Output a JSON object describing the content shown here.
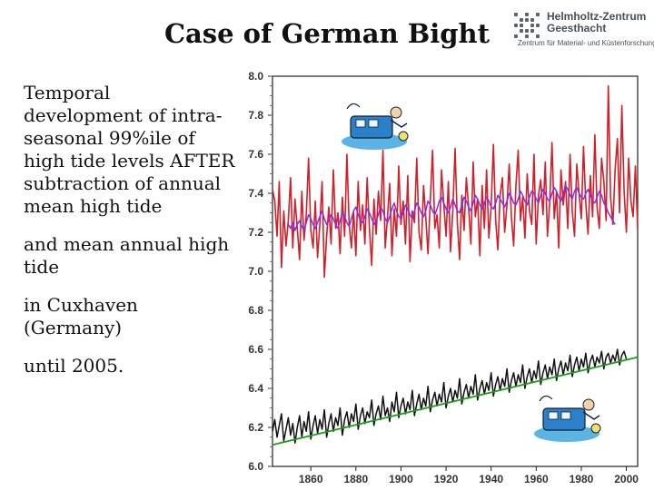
{
  "title": "Case of German Bight",
  "logo": {
    "name_line1": "Helmholtz-Zentrum",
    "name_line2": "Geesthacht",
    "subtitle": "Zentrum für Material- und Küstenforschung",
    "icon": "hzg-grid-logo-icon"
  },
  "description": {
    "paragraph1_lines": [
      "Temporal",
      "development of intra-",
      "seasonal 99%ile of",
      "high tide levels AFTER",
      "subtraction of annual",
      "mean high tide"
    ],
    "paragraph2_lines": [
      "and mean annual high",
      "tide"
    ],
    "paragraph3_lines": [
      "in Cuxhaven",
      "(Germany)"
    ],
    "paragraph4": "until 2005."
  },
  "colors": {
    "percentile_series": "#d0202a",
    "percentile_smooth": "#8a2be2",
    "annual_mean": "#111111",
    "trend": "#1aa01a"
  },
  "chart_data": {
    "type": "line",
    "title": "",
    "xlabel": "",
    "ylabel": "",
    "xlim": [
      1843,
      2005
    ],
    "ylim": [
      6.0,
      8.0
    ],
    "x_ticks": [
      "1860",
      "1880",
      "1900",
      "1920",
      "1940",
      "1960",
      "1980",
      "2000"
    ],
    "y_ticks": [
      "8.0",
      "7.8",
      "7.6",
      "7.4",
      "7.2",
      "7.0",
      "6.8",
      "6.6",
      "6.4",
      "6.2",
      "6.0"
    ],
    "grid": false,
    "legend": "none",
    "decorations": [
      "cartoon-upper",
      "cartoon-lower"
    ],
    "series": [
      {
        "x_start": 1843,
        "x_step": 1,
        "values": [
          7.42,
          7.36,
          7.18,
          7.46,
          7.02,
          7.31,
          7.13,
          7.26,
          7.48,
          7.12,
          7.37,
          7.22,
          7.06,
          7.41,
          7.16,
          7.29,
          7.58,
          7.21,
          7.12,
          7.36,
          7.07,
          7.24,
          7.46,
          6.97,
          7.18,
          7.33,
          7.14,
          7.52,
          7.22,
          7.3,
          7.09,
          7.38,
          7.18,
          7.6,
          7.24,
          7.12,
          7.31,
          7.08,
          7.46,
          7.21,
          7.34,
          7.14,
          7.48,
          7.22,
          7.03,
          7.37,
          7.19,
          7.41,
          7.26,
          7.62,
          7.12,
          7.28,
          7.45,
          7.08,
          7.32,
          7.18,
          7.54,
          7.24,
          7.36,
          7.14,
          7.49,
          7.05,
          7.31,
          7.25,
          7.58,
          7.2,
          7.11,
          7.44,
          7.28,
          7.09,
          7.36,
          7.62,
          7.22,
          7.29,
          7.12,
          7.52,
          7.34,
          7.18,
          7.46,
          7.1,
          7.31,
          7.63,
          7.25,
          7.06,
          7.39,
          7.21,
          7.48,
          7.33,
          7.14,
          7.56,
          7.28,
          7.37,
          7.08,
          7.44,
          7.22,
          7.52,
          7.17,
          7.33,
          7.65,
          7.26,
          7.11,
          7.39,
          7.48,
          7.2,
          7.34,
          7.55,
          7.28,
          7.13,
          7.44,
          7.62,
          7.26,
          7.38,
          7.17,
          7.5,
          7.31,
          7.24,
          7.6,
          7.14,
          7.39,
          7.47,
          7.29,
          7.56,
          7.18,
          7.35,
          7.66,
          7.27,
          7.41,
          7.12,
          7.52,
          7.34,
          7.46,
          7.22,
          7.6,
          7.31,
          7.18,
          7.55,
          7.4,
          7.27,
          7.64,
          7.35,
          7.19,
          7.49,
          7.28,
          7.7,
          7.33,
          7.22,
          7.58,
          7.46,
          7.26,
          7.95,
          7.38,
          7.24,
          7.52,
          7.68,
          7.3,
          7.85,
          7.41,
          7.2,
          7.58,
          7.36,
          7.28,
          7.54,
          7.22
        ]
      },
      {
        "x_start": 1850,
        "x_step": 1,
        "values": [
          7.24,
          7.22,
          7.25,
          7.21,
          7.24,
          7.26,
          7.23,
          7.21,
          7.25,
          7.29,
          7.27,
          7.24,
          7.22,
          7.25,
          7.28,
          7.31,
          7.27,
          7.24,
          7.26,
          7.29,
          7.27,
          7.24,
          7.22,
          7.26,
          7.3,
          7.28,
          7.25,
          7.23,
          7.27,
          7.31,
          7.33,
          7.29,
          7.26,
          7.25,
          7.28,
          7.32,
          7.3,
          7.27,
          7.24,
          7.26,
          7.29,
          7.33,
          7.31,
          7.27,
          7.25,
          7.28,
          7.32,
          7.35,
          7.31,
          7.28,
          7.27,
          7.3,
          7.34,
          7.32,
          7.29,
          7.27,
          7.31,
          7.35,
          7.33,
          7.3,
          7.28,
          7.31,
          7.36,
          7.34,
          7.31,
          7.29,
          7.32,
          7.36,
          7.38,
          7.35,
          7.32,
          7.3,
          7.33,
          7.37,
          7.34,
          7.31,
          7.3,
          7.34,
          7.38,
          7.36,
          7.33,
          7.31,
          7.35,
          7.39,
          7.37,
          7.34,
          7.32,
          7.35,
          7.38,
          7.36,
          7.33,
          7.32,
          7.35,
          7.39,
          7.37,
          7.35,
          7.33,
          7.36,
          7.4,
          7.38,
          7.35,
          7.34,
          7.37,
          7.41,
          7.39,
          7.36,
          7.34,
          7.38,
          7.41,
          7.4,
          7.37,
          7.35,
          7.39,
          7.42,
          7.4,
          7.37,
          7.36,
          7.4,
          7.43,
          7.41,
          7.38,
          7.36,
          7.4,
          7.44,
          7.42,
          7.39,
          7.37,
          7.41,
          7.43,
          7.4,
          7.38,
          7.37,
          7.4,
          7.42,
          7.39,
          7.36,
          7.35,
          7.38,
          7.41,
          7.39,
          7.35,
          7.33,
          7.3,
          7.28,
          7.26,
          7.24
        ]
      },
      {
        "x_start": 1843,
        "x_step": 1,
        "values": [
          6.18,
          6.24,
          6.15,
          6.21,
          6.27,
          6.13,
          6.19,
          6.25,
          6.16,
          6.22,
          6.12,
          6.2,
          6.26,
          6.15,
          6.23,
          6.18,
          6.28,
          6.14,
          6.21,
          6.26,
          6.17,
          6.24,
          6.19,
          6.29,
          6.15,
          6.22,
          6.27,
          6.18,
          6.25,
          6.21,
          6.3,
          6.16,
          6.24,
          6.28,
          6.2,
          6.27,
          6.23,
          6.32,
          6.19,
          6.26,
          6.3,
          6.22,
          6.28,
          6.25,
          6.34,
          6.21,
          6.27,
          6.31,
          6.24,
          6.36,
          6.26,
          6.3,
          6.23,
          6.33,
          6.28,
          6.38,
          6.25,
          6.31,
          6.35,
          6.27,
          6.33,
          6.29,
          6.39,
          6.26,
          6.32,
          6.37,
          6.29,
          6.35,
          6.31,
          6.41,
          6.28,
          6.34,
          6.38,
          6.31,
          6.37,
          6.33,
          6.43,
          6.3,
          6.36,
          6.4,
          6.33,
          6.39,
          6.35,
          6.45,
          6.32,
          6.38,
          6.42,
          6.35,
          6.41,
          6.37,
          6.47,
          6.34,
          6.4,
          6.44,
          6.37,
          6.43,
          6.39,
          6.48,
          6.36,
          6.42,
          6.46,
          6.39,
          6.45,
          6.41,
          6.5,
          6.38,
          6.44,
          6.48,
          6.41,
          6.47,
          6.43,
          6.52,
          6.4,
          6.46,
          6.5,
          6.43,
          6.49,
          6.45,
          6.54,
          6.42,
          6.48,
          6.52,
          6.45,
          6.51,
          6.47,
          6.55,
          6.44,
          6.5,
          6.54,
          6.47,
          6.53,
          6.49,
          6.57,
          6.46,
          6.52,
          6.56,
          6.49,
          6.55,
          6.51,
          6.58,
          6.48,
          6.54,
          6.57,
          6.51,
          6.56,
          6.53,
          6.59,
          6.5,
          6.56,
          6.58,
          6.53,
          6.57,
          6.54,
          6.6,
          6.52,
          6.57,
          6.59,
          6.55
        ]
      },
      {
        "x": [
          1843,
          2005
        ],
        "values": [
          6.11,
          6.56
        ]
      }
    ]
  }
}
